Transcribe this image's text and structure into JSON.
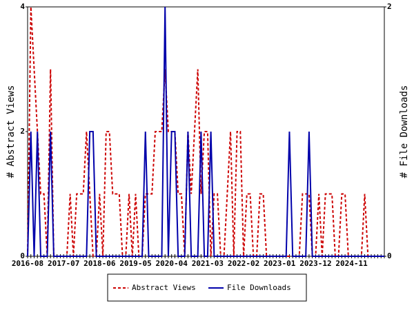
{
  "chart_data": {
    "type": "line",
    "y_label": "# Abstract Views",
    "y2_label": "# File Downloads",
    "categories": [
      "2016-08",
      null,
      null,
      null,
      null,
      null,
      null,
      null,
      null,
      null,
      null,
      "2017-07",
      null,
      null,
      null,
      null,
      null,
      null,
      null,
      null,
      null,
      null,
      "2018-06",
      null,
      null,
      null,
      null,
      null,
      null,
      null,
      null,
      null,
      null,
      "2019-05",
      null,
      null,
      null,
      null,
      null,
      null,
      null,
      null,
      null,
      null,
      "2020-04",
      null,
      null,
      null,
      null,
      null,
      null,
      null,
      null,
      null,
      null,
      "2021-03",
      null,
      null,
      null,
      null,
      null,
      null,
      null,
      null,
      null,
      null,
      "2022-02",
      null,
      null,
      null,
      null,
      null,
      null,
      null,
      null,
      null,
      null,
      "2023-01",
      null,
      null,
      null,
      null,
      null,
      null,
      null,
      null,
      null,
      null,
      "2023-12",
      null,
      null,
      null,
      null,
      null,
      null,
      null,
      null,
      null,
      null,
      "2024-11",
      null,
      null,
      null,
      null,
      null,
      null,
      null,
      null,
      null,
      null
    ],
    "series": [
      {
        "name": "Abstract Views",
        "color": "#cc0000",
        "dashed": true,
        "values": [
          0,
          4,
          3,
          2,
          1,
          1,
          0,
          3,
          0,
          0,
          0,
          0,
          0,
          1,
          0,
          1,
          1,
          1,
          2,
          1,
          0,
          0,
          1,
          0,
          2,
          2,
          1,
          1,
          1,
          0,
          0,
          1,
          0,
          1,
          0,
          0,
          1,
          1,
          1,
          2,
          2,
          2,
          3,
          2,
          2,
          2,
          1,
          1,
          0,
          2,
          1,
          2,
          3,
          1,
          2,
          2,
          0,
          1,
          1,
          0,
          0,
          1,
          2,
          0,
          2,
          2,
          0,
          1,
          1,
          0,
          0,
          1,
          1,
          0,
          0,
          0,
          0,
          0,
          0,
          0,
          0,
          0,
          0,
          0,
          1,
          1,
          1,
          0,
          0,
          1,
          0,
          1,
          1,
          1,
          0,
          0,
          1,
          1,
          0,
          0,
          0,
          0,
          0,
          1,
          0,
          0,
          0,
          0,
          0,
          0
        ]
      },
      {
        "name": "File Downloads",
        "color": "#0000aa",
        "dashed": false,
        "axis": "y2",
        "values": [
          0,
          1,
          0,
          1,
          0,
          0,
          0,
          1,
          0,
          0,
          0,
          0,
          0,
          0,
          0,
          0,
          0,
          0,
          0,
          1,
          1,
          0,
          0,
          0,
          0,
          0,
          0,
          0,
          0,
          0,
          0,
          0,
          0,
          0,
          0,
          0,
          1,
          0,
          0,
          0,
          0,
          0,
          2,
          0,
          1,
          1,
          0,
          0,
          0,
          1,
          0,
          0,
          0,
          1,
          0,
          0,
          1,
          0,
          0,
          0,
          0,
          0,
          0,
          0,
          0,
          0,
          0,
          0,
          0,
          0,
          0,
          0,
          0,
          0,
          0,
          0,
          0,
          0,
          0,
          0,
          1,
          0,
          0,
          0,
          0,
          0,
          1,
          0,
          0,
          0,
          0,
          0,
          0,
          0,
          0,
          0,
          0,
          0,
          0,
          0,
          0,
          0,
          0,
          0,
          0,
          0,
          0,
          0,
          0,
          0
        ]
      }
    ],
    "ylim": [
      0,
      4
    ],
    "yticks": [
      0,
      2,
      4
    ],
    "y2lim": [
      0,
      2
    ],
    "y2ticks": [
      0,
      2
    ],
    "grid": false,
    "legend": "bottom"
  }
}
